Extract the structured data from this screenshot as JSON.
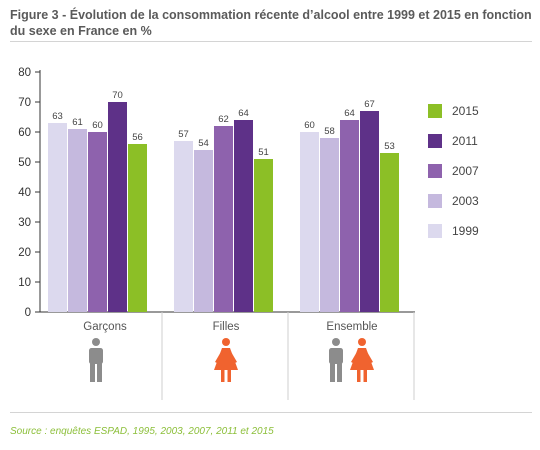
{
  "title": "Figure 3 - Évolution de la consommation récente d’alcool entre 1999 et 2015 en fonction du sexe en France en %",
  "source": "Source : enquêtes ESPAD, 1995, 2003, 2007, 2011 et 2015",
  "colors": {
    "1999": "#dcd9ee",
    "2003": "#c5b9de",
    "2007": "#8e62ad",
    "2011": "#5e3188",
    "2015": "#8cbf26",
    "male_icon": "#8c8c8c",
    "female_icon": "#f0632f"
  },
  "icons": {
    "Garçons": [
      "male-person-icon"
    ],
    "Filles": [
      "female-person-icon"
    ],
    "Ensemble": [
      "male-person-icon",
      "female-person-icon"
    ]
  },
  "chart_data": {
    "type": "bar",
    "categories": [
      "Garçons",
      "Filles",
      "Ensemble"
    ],
    "series": [
      {
        "name": "1999",
        "values": [
          63,
          57,
          60
        ]
      },
      {
        "name": "2003",
        "values": [
          61,
          54,
          58
        ]
      },
      {
        "name": "2007",
        "values": [
          60,
          62,
          64
        ]
      },
      {
        "name": "2011",
        "values": [
          70,
          64,
          67
        ]
      },
      {
        "name": "2015",
        "values": [
          56,
          51,
          53
        ]
      }
    ],
    "legend_order": [
      "2015",
      "2011",
      "2007",
      "2003",
      "1999"
    ],
    "legend_placement": "right",
    "ylim": [
      0,
      80
    ],
    "yticks": [
      0,
      10,
      20,
      30,
      40,
      50,
      60,
      70,
      80
    ],
    "grid": false,
    "data_labels": true
  }
}
